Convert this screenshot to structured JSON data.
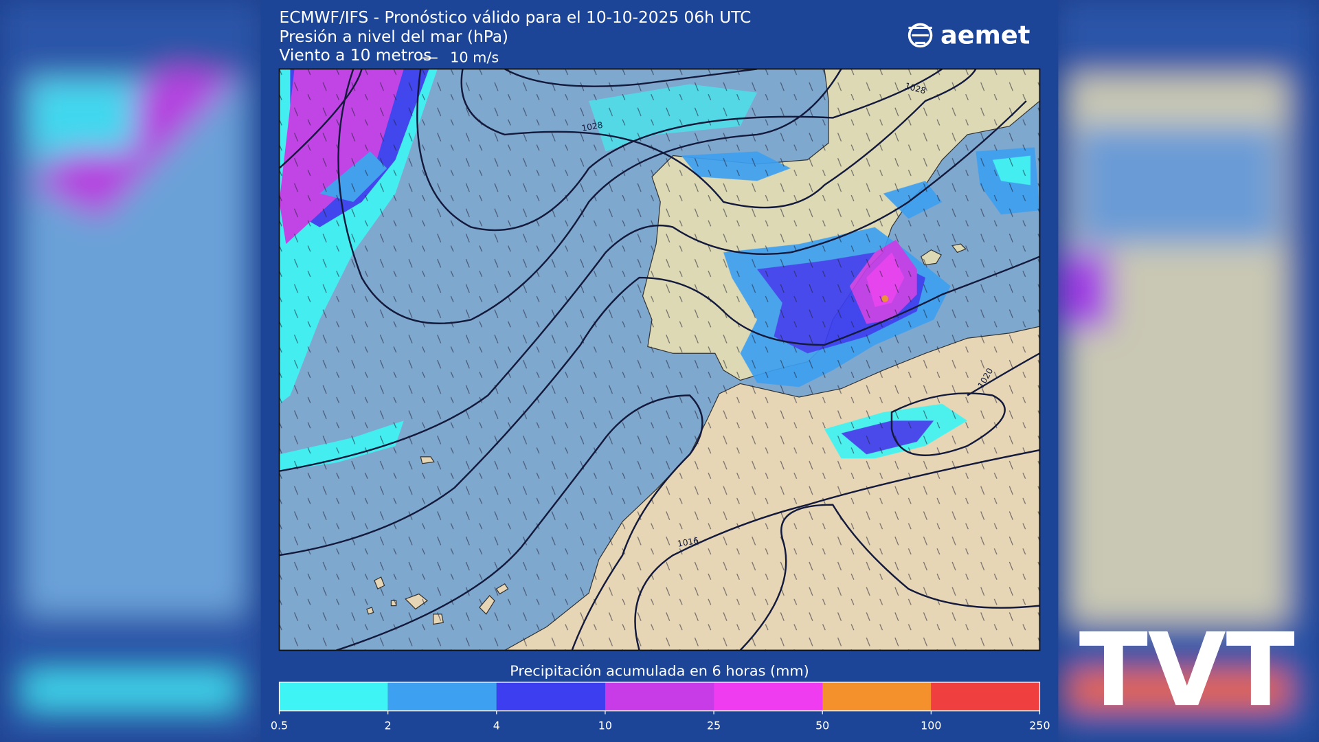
{
  "header": {
    "title": "ECMWF/IFS - Pronóstico válido para el 10-10-2025 06h UTC",
    "subtitle": "Presión a nivel del mar (hPa)",
    "wind": "Viento a 10 metros",
    "wind_scale": "10 m/s"
  },
  "logo": "aemet",
  "watermark": "TVT",
  "map": {
    "isobar_labels": [
      "1028",
      "1028",
      "1020",
      "1016"
    ]
  },
  "legend": {
    "title": "Precipitación acumulada en 6 horas (mm)",
    "ticks": [
      0.5,
      2,
      4,
      10,
      25,
      50,
      100,
      250
    ],
    "colors": [
      "#3ff4f4",
      "#3ea0f0",
      "#3d3ef0",
      "#c83ce8",
      "#f03cf0",
      "#f5912c",
      "#ef3f3f"
    ]
  }
}
